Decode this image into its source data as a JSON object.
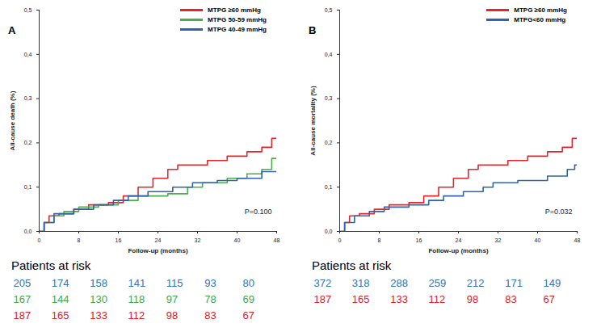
{
  "chart_data": [
    {
      "type": "line",
      "title": "A",
      "line_style": "step",
      "legend": "top-right",
      "xlabel": "Follow-up (months)",
      "ylabel": "All-cause death (%)",
      "xlim": [
        0,
        48
      ],
      "xticks": [
        0,
        8,
        16,
        24,
        32,
        40,
        48
      ],
      "ylim": [
        0,
        0.5
      ],
      "yticks": [
        {
          "value": 0,
          "label": "0,0"
        },
        {
          "value": 0.1,
          "label": "0,1"
        },
        {
          "value": 0.2,
          "label": "0,2"
        },
        {
          "value": 0.3,
          "label": "0,3"
        },
        {
          "value": 0.4,
          "label": "0,4"
        },
        {
          "value": 0.5,
          "label": "0,5"
        }
      ],
      "annotation": "P=0.100",
      "series": [
        {
          "name": "MTPG ≥60 mmHg",
          "color": "#e3262b",
          "x": [
            0,
            1,
            2,
            4,
            7,
            10,
            14,
            17,
            20,
            23,
            26,
            28,
            34,
            38,
            42,
            45,
            47,
            48
          ],
          "values": [
            0,
            0.02,
            0.035,
            0.04,
            0.05,
            0.06,
            0.065,
            0.08,
            0.1,
            0.12,
            0.14,
            0.15,
            0.16,
            0.17,
            0.18,
            0.19,
            0.21,
            0.21
          ]
        },
        {
          "name": "MTPG 50-59 mmHg",
          "color": "#47b04b",
          "x": [
            0,
            1,
            3,
            5,
            8,
            12,
            16,
            20,
            26,
            30,
            33,
            38,
            42,
            45,
            47,
            48
          ],
          "values": [
            0,
            0.02,
            0.035,
            0.045,
            0.055,
            0.06,
            0.07,
            0.08,
            0.085,
            0.1,
            0.11,
            0.12,
            0.13,
            0.14,
            0.165,
            0.165
          ]
        },
        {
          "name": "MTPG 40-49 mmHg",
          "color": "#2f64ad",
          "x": [
            0,
            1,
            3,
            7,
            11,
            15,
            18,
            22,
            27,
            31,
            36,
            40,
            45,
            48
          ],
          "values": [
            0,
            0.02,
            0.04,
            0.05,
            0.06,
            0.07,
            0.08,
            0.09,
            0.1,
            0.11,
            0.115,
            0.12,
            0.135,
            0.135
          ]
        }
      ],
      "patients_at_risk": {
        "label": "Patients at risk",
        "rows": [
          {
            "color": "#2e75b6",
            "values": [
              205,
              174,
              158,
              141,
              115,
              93,
              80
            ]
          },
          {
            "color": "#3fa84a",
            "values": [
              167,
              144,
              130,
              118,
              97,
              78,
              69
            ]
          },
          {
            "color": "#e0202a",
            "values": [
              187,
              165,
              133,
              112,
              98,
              83,
              67
            ]
          }
        ]
      }
    },
    {
      "type": "line",
      "title": "B",
      "line_style": "step",
      "legend": "top-right",
      "xlabel": "Follow-up (months)",
      "ylabel": "All-cause mortality (%)",
      "xlim": [
        0,
        48
      ],
      "xticks": [
        0,
        8,
        16,
        24,
        32,
        40,
        48
      ],
      "ylim": [
        0,
        0.5
      ],
      "yticks": [
        {
          "value": 0,
          "label": "0,0"
        },
        {
          "value": 0.1,
          "label": "0,1"
        },
        {
          "value": 0.2,
          "label": "0,2"
        },
        {
          "value": 0.3,
          "label": "0,3"
        },
        {
          "value": 0.4,
          "label": "0,4"
        },
        {
          "value": 0.5,
          "label": "0,5"
        }
      ],
      "annotation": "P=0.032",
      "series": [
        {
          "name": "MTPG ≥60 mmHg",
          "color": "#e3262b",
          "x": [
            0,
            1,
            2,
            4,
            7,
            10,
            14,
            17,
            20,
            23,
            26,
            28,
            34,
            38,
            42,
            45,
            47,
            48
          ],
          "values": [
            0,
            0.02,
            0.035,
            0.04,
            0.05,
            0.06,
            0.065,
            0.08,
            0.1,
            0.12,
            0.14,
            0.15,
            0.16,
            0.17,
            0.18,
            0.19,
            0.21,
            0.21
          ]
        },
        {
          "name": "MTPG<60 mmHg",
          "color": "#2f64ad",
          "x": [
            0,
            1,
            3,
            6,
            9,
            14,
            18,
            21,
            25,
            29,
            31,
            36,
            42,
            46,
            47.5,
            48
          ],
          "values": [
            0,
            0.02,
            0.035,
            0.045,
            0.055,
            0.06,
            0.07,
            0.08,
            0.09,
            0.1,
            0.11,
            0.115,
            0.125,
            0.14,
            0.15,
            0.15
          ]
        }
      ],
      "patients_at_risk": {
        "label": "Patients at risk",
        "rows": [
          {
            "color": "#2e75b6",
            "values": [
              372,
              318,
              288,
              259,
              212,
              171,
              149
            ]
          },
          {
            "color": "#e0202a",
            "values": [
              187,
              165,
              133,
              112,
              98,
              83,
              67
            ]
          }
        ]
      }
    }
  ]
}
